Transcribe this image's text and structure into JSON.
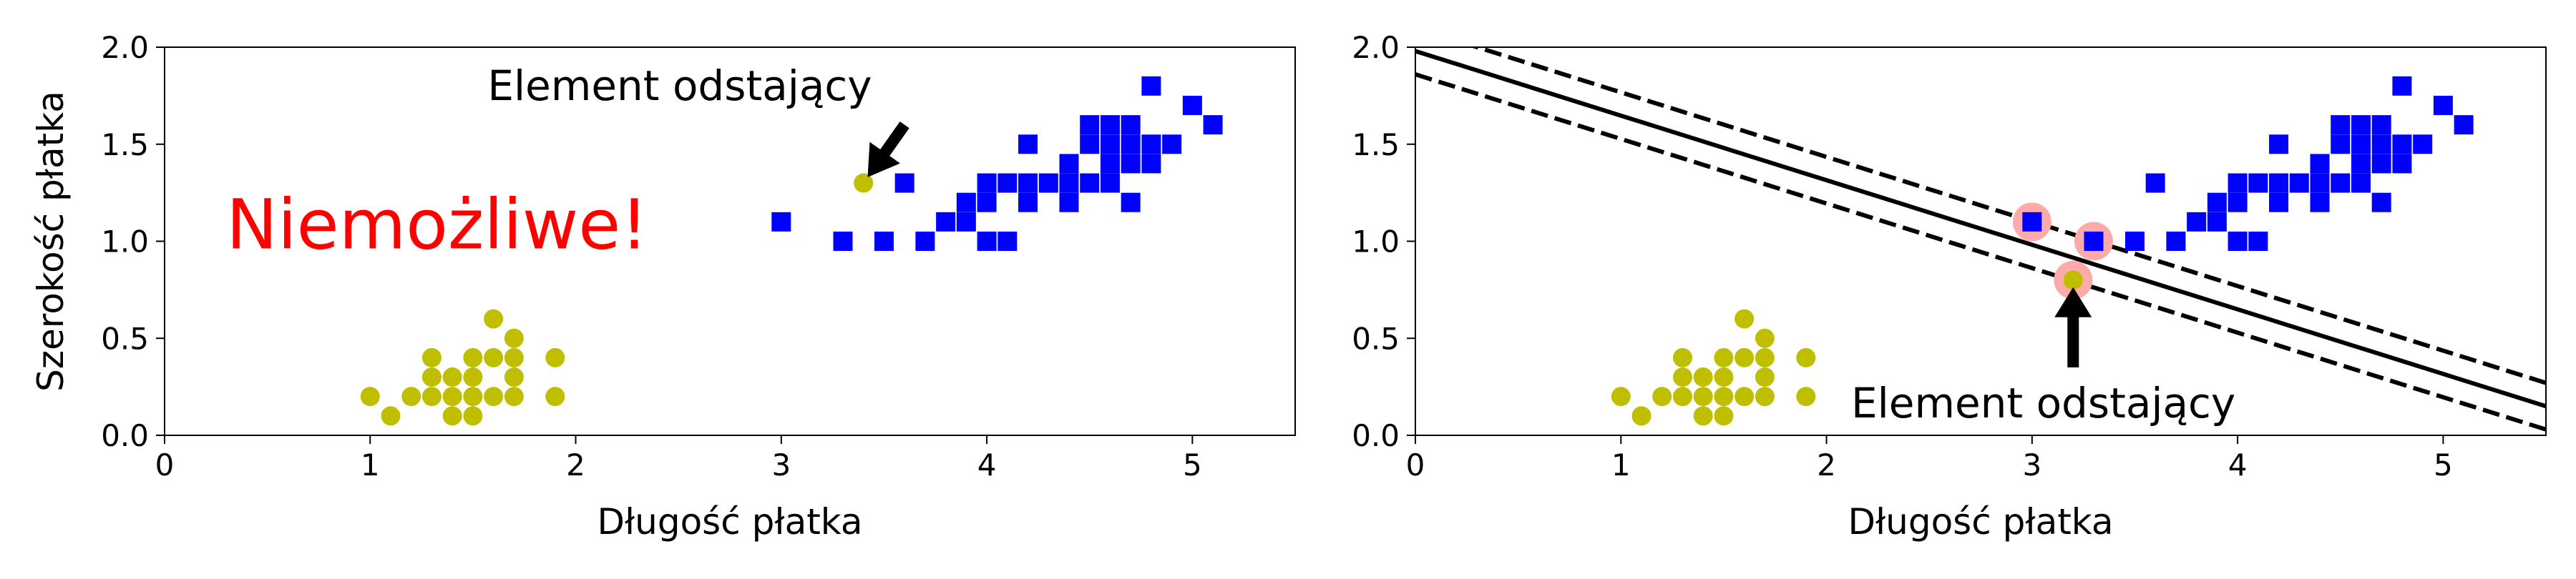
{
  "chart_data": [
    {
      "type": "scatter",
      "xlabel": "Długość płatka",
      "ylabel": "Szerokość płatka",
      "xlim": [
        0,
        5.5
      ],
      "ylim": [
        0,
        2.0
      ],
      "xticks": [
        "0",
        "1",
        "2",
        "3",
        "4",
        "5"
      ],
      "yticks": [
        "0.0",
        "0.5",
        "1.0",
        "1.5",
        "2.0"
      ],
      "grid": false,
      "series": [
        {
          "marker": "circle",
          "color": "#bfbf00",
          "points": [
            [
              1.0,
              0.2
            ],
            [
              1.1,
              0.1
            ],
            [
              1.2,
              0.2
            ],
            [
              1.3,
              0.2
            ],
            [
              1.3,
              0.3
            ],
            [
              1.3,
              0.4
            ],
            [
              1.4,
              0.1
            ],
            [
              1.4,
              0.2
            ],
            [
              1.4,
              0.3
            ],
            [
              1.5,
              0.1
            ],
            [
              1.5,
              0.2
            ],
            [
              1.5,
              0.3
            ],
            [
              1.5,
              0.4
            ],
            [
              1.6,
              0.2
            ],
            [
              1.6,
              0.4
            ],
            [
              1.6,
              0.6
            ],
            [
              1.7,
              0.2
            ],
            [
              1.7,
              0.3
            ],
            [
              1.7,
              0.4
            ],
            [
              1.7,
              0.5
            ],
            [
              1.9,
              0.2
            ],
            [
              1.9,
              0.4
            ],
            [
              3.4,
              1.3
            ]
          ]
        },
        {
          "marker": "square",
          "color": "#0000ff",
          "points": [
            [
              3.0,
              1.1
            ],
            [
              3.3,
              1.0
            ],
            [
              3.5,
              1.0
            ],
            [
              3.6,
              1.3
            ],
            [
              3.7,
              1.0
            ],
            [
              3.8,
              1.1
            ],
            [
              3.9,
              1.1
            ],
            [
              3.9,
              1.2
            ],
            [
              4.0,
              1.0
            ],
            [
              4.0,
              1.2
            ],
            [
              4.0,
              1.3
            ],
            [
              4.1,
              1.0
            ],
            [
              4.1,
              1.3
            ],
            [
              4.2,
              1.2
            ],
            [
              4.2,
              1.3
            ],
            [
              4.2,
              1.5
            ],
            [
              4.3,
              1.3
            ],
            [
              4.4,
              1.2
            ],
            [
              4.4,
              1.3
            ],
            [
              4.4,
              1.4
            ],
            [
              4.5,
              1.3
            ],
            [
              4.5,
              1.5
            ],
            [
              4.6,
              1.3
            ],
            [
              4.6,
              1.4
            ],
            [
              4.7,
              1.2
            ],
            [
              4.7,
              1.4
            ],
            [
              4.8,
              1.8
            ],
            [
              4.9,
              1.5
            ],
            [
              5.0,
              1.7
            ],
            [
              5.1,
              1.6
            ],
            [
              4.5,
              1.6
            ],
            [
              4.6,
              1.5
            ],
            [
              4.7,
              1.5
            ],
            [
              4.7,
              1.6
            ],
            [
              4.8,
              1.4
            ],
            [
              4.8,
              1.5
            ],
            [
              4.6,
              1.6
            ]
          ]
        }
      ],
      "annotations": [
        {
          "text": "Element odstający",
          "arrow_to": [
            3.4,
            1.3
          ],
          "arrow_from": [
            3.6,
            1.6
          ]
        },
        {
          "text": "Niemożliwe!",
          "color": "#ff0000",
          "at": [
            0.3,
            1.0
          ]
        }
      ]
    },
    {
      "type": "scatter",
      "xlabel": "Długość płatka",
      "ylabel": "",
      "xlim": [
        0,
        5.5
      ],
      "ylim": [
        0,
        2.0
      ],
      "xticks": [
        "0",
        "1",
        "2",
        "3",
        "4",
        "5"
      ],
      "yticks": [
        "0.0",
        "0.5",
        "1.0",
        "1.5",
        "2.0"
      ],
      "grid": false,
      "series": [
        {
          "marker": "circle",
          "color": "#bfbf00",
          "points": [
            [
              1.0,
              0.2
            ],
            [
              1.1,
              0.1
            ],
            [
              1.2,
              0.2
            ],
            [
              1.3,
              0.2
            ],
            [
              1.3,
              0.3
            ],
            [
              1.3,
              0.4
            ],
            [
              1.4,
              0.1
            ],
            [
              1.4,
              0.2
            ],
            [
              1.4,
              0.3
            ],
            [
              1.5,
              0.1
            ],
            [
              1.5,
              0.2
            ],
            [
              1.5,
              0.3
            ],
            [
              1.5,
              0.4
            ],
            [
              1.6,
              0.2
            ],
            [
              1.6,
              0.4
            ],
            [
              1.6,
              0.6
            ],
            [
              1.7,
              0.2
            ],
            [
              1.7,
              0.3
            ],
            [
              1.7,
              0.4
            ],
            [
              1.7,
              0.5
            ],
            [
              1.9,
              0.2
            ],
            [
              1.9,
              0.4
            ],
            [
              3.2,
              0.8
            ]
          ]
        },
        {
          "marker": "square",
          "color": "#0000ff",
          "points": [
            [
              3.0,
              1.1
            ],
            [
              3.3,
              1.0
            ],
            [
              3.5,
              1.0
            ],
            [
              3.6,
              1.3
            ],
            [
              3.7,
              1.0
            ],
            [
              3.8,
              1.1
            ],
            [
              3.9,
              1.1
            ],
            [
              3.9,
              1.2
            ],
            [
              4.0,
              1.0
            ],
            [
              4.0,
              1.2
            ],
            [
              4.0,
              1.3
            ],
            [
              4.1,
              1.0
            ],
            [
              4.1,
              1.3
            ],
            [
              4.2,
              1.2
            ],
            [
              4.2,
              1.3
            ],
            [
              4.2,
              1.5
            ],
            [
              4.3,
              1.3
            ],
            [
              4.4,
              1.2
            ],
            [
              4.4,
              1.3
            ],
            [
              4.4,
              1.4
            ],
            [
              4.5,
              1.3
            ],
            [
              4.5,
              1.5
            ],
            [
              4.6,
              1.3
            ],
            [
              4.6,
              1.4
            ],
            [
              4.7,
              1.2
            ],
            [
              4.7,
              1.4
            ],
            [
              4.8,
              1.8
            ],
            [
              4.9,
              1.5
            ],
            [
              5.0,
              1.7
            ],
            [
              5.1,
              1.6
            ],
            [
              4.5,
              1.6
            ],
            [
              4.6,
              1.5
            ],
            [
              4.7,
              1.5
            ],
            [
              4.7,
              1.6
            ],
            [
              4.8,
              1.4
            ],
            [
              4.8,
              1.5
            ],
            [
              4.6,
              1.6
            ]
          ]
        }
      ],
      "support_vectors": {
        "color": "#ffaaaa",
        "points": [
          [
            3.0,
            1.1
          ],
          [
            3.3,
            1.0
          ],
          [
            3.2,
            0.8
          ]
        ]
      },
      "decision_boundary": {
        "solid": [
          [
            0,
            1.98
          ],
          [
            5.5,
            0.15
          ]
        ],
        "dashed": [
          [
            [
              0,
              2.1
            ],
            [
              5.5,
              0.27
            ]
          ],
          [
            [
              0,
              1.86
            ],
            [
              5.5,
              0.03
            ]
          ]
        ]
      },
      "annotations": [
        {
          "text": "Element odstający",
          "arrow_to": [
            3.2,
            0.8
          ],
          "arrow_from": [
            3.2,
            0.35
          ]
        }
      ]
    }
  ]
}
